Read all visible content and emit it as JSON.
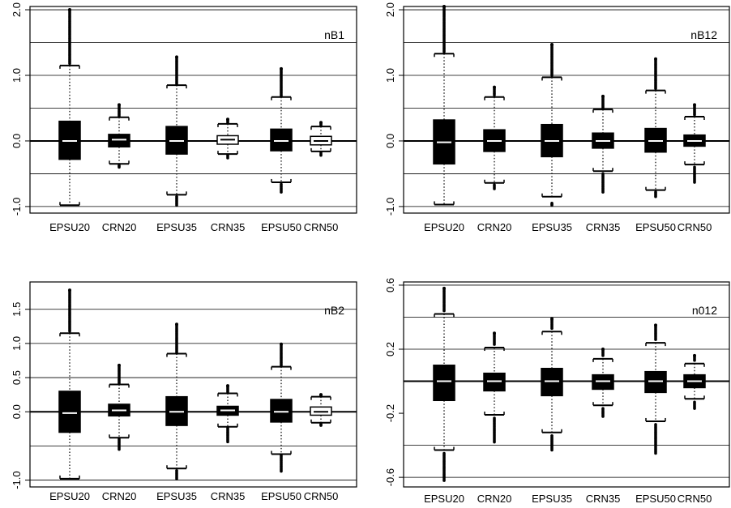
{
  "chart_data": [
    {
      "type": "box",
      "title": "nB1",
      "categories": [
        "EPSU20",
        "CRN20",
        "EPSU35",
        "CRN35",
        "EPSU50",
        "CRN50"
      ],
      "yticks": [
        2.0,
        1.0,
        0.0,
        -1.0
      ],
      "ytick_labels": [
        "2.0",
        "1.0",
        "0.0",
        "-1.0"
      ],
      "ylim": [
        -1.1,
        2.05
      ],
      "grid_y": [
        2.0,
        1.5,
        1.0,
        0.5,
        0.0,
        -0.5,
        -1.0
      ],
      "fills": [
        "#000000",
        "#000000",
        "#000000",
        "#ffffff",
        "#000000",
        "#ffffff"
      ],
      "boxes": [
        {
          "q1": -0.28,
          "median": 0.0,
          "q3": 0.3,
          "whislo": -0.98,
          "whishi": 1.15,
          "outlier_range": [
            1.18,
            2.0
          ]
        },
        {
          "q1": -0.09,
          "median": 0.02,
          "q3": 0.1,
          "whislo": -0.35,
          "whishi": 0.36,
          "outlier_range": [
            0.38,
            0.55
          ]
        },
        {
          "q1": -0.2,
          "median": 0.0,
          "q3": 0.22,
          "whislo": -0.82,
          "whishi": 0.85,
          "outlier_range": [
            0.87,
            1.28
          ]
        },
        {
          "q1": -0.05,
          "median": 0.02,
          "q3": 0.08,
          "whislo": -0.2,
          "whishi": 0.26,
          "outlier_range": [
            0.28,
            0.33
          ]
        },
        {
          "q1": -0.15,
          "median": 0.0,
          "q3": 0.18,
          "whislo": -0.63,
          "whishi": 0.67,
          "outlier_range": [
            0.69,
            1.1
          ]
        },
        {
          "q1": -0.06,
          "median": 0.0,
          "q3": 0.07,
          "whislo": -0.16,
          "whishi": 0.22,
          "outlier_range": [
            0.24,
            0.28
          ]
        }
      ],
      "lower_outlier_range": [
        null,
        [
          -0.37,
          -0.4
        ],
        [
          -0.85,
          -0.98
        ],
        [
          -0.22,
          -0.26
        ],
        [
          -0.66,
          -0.78
        ],
        [
          -0.18,
          -0.22
        ]
      ]
    },
    {
      "type": "box",
      "title": "nB12",
      "categories": [
        "EPSU20",
        "CRN20",
        "EPSU35",
        "CRN35",
        "EPSU50",
        "CRN50"
      ],
      "yticks": [
        2.0,
        1.0,
        0.0,
        -1.0
      ],
      "ytick_labels": [
        "2.0",
        "1.0",
        "0.0",
        "-1.0"
      ],
      "ylim": [
        -1.1,
        2.05
      ],
      "grid_y": [
        2.0,
        1.5,
        1.0,
        0.5,
        0.0,
        -0.5,
        -1.0
      ],
      "fills": [
        "#000000",
        "#000000",
        "#000000",
        "#000000",
        "#000000",
        "#000000"
      ],
      "boxes": [
        {
          "q1": -0.35,
          "median": -0.02,
          "q3": 0.32,
          "whislo": -0.97,
          "whishi": 1.33,
          "outlier_range": [
            1.36,
            2.05
          ]
        },
        {
          "q1": -0.16,
          "median": 0.0,
          "q3": 0.17,
          "whislo": -0.64,
          "whishi": 0.67,
          "outlier_range": [
            0.7,
            0.82
          ]
        },
        {
          "q1": -0.24,
          "median": 0.0,
          "q3": 0.25,
          "whislo": -0.85,
          "whishi": 0.97,
          "outlier_range": [
            1.0,
            1.47
          ]
        },
        {
          "q1": -0.11,
          "median": 0.0,
          "q3": 0.12,
          "whislo": -0.46,
          "whishi": 0.48,
          "outlier_range": [
            0.5,
            0.68
          ]
        },
        {
          "q1": -0.17,
          "median": 0.0,
          "q3": 0.19,
          "whislo": -0.75,
          "whishi": 0.77,
          "outlier_range": [
            0.8,
            1.25
          ]
        },
        {
          "q1": -0.08,
          "median": 0.0,
          "q3": 0.09,
          "whislo": -0.36,
          "whishi": 0.37,
          "outlier_range": [
            0.4,
            0.55
          ]
        }
      ],
      "lower_outlier_range": [
        null,
        [
          -0.67,
          -0.73
        ],
        [
          -0.95,
          -0.98
        ],
        [
          -0.5,
          -0.78
        ],
        [
          -0.78,
          -0.85
        ],
        [
          -0.4,
          -0.63
        ]
      ]
    },
    {
      "type": "box",
      "title": "nB2",
      "categories": [
        "EPSU20",
        "CRN20",
        "EPSU35",
        "CRN35",
        "EPSU50",
        "CRN50"
      ],
      "yticks": [
        1.5,
        1.0,
        0.5,
        0.0,
        -1.0
      ],
      "ytick_labels": [
        "1.5",
        "1.0",
        "0.5",
        "0.0",
        "-1.0"
      ],
      "ylim": [
        -1.1,
        1.9
      ],
      "grid_y": [
        1.5,
        1.0,
        0.5,
        0.0,
        -0.5,
        -1.0
      ],
      "fills": [
        "#000000",
        "#000000",
        "#000000",
        "#000000",
        "#000000",
        "#ffffff"
      ],
      "boxes": [
        {
          "q1": -0.3,
          "median": -0.02,
          "q3": 0.3,
          "whislo": -0.98,
          "whishi": 1.15,
          "outlier_range": [
            1.18,
            1.78
          ]
        },
        {
          "q1": -0.06,
          "median": 0.02,
          "q3": 0.11,
          "whislo": -0.38,
          "whishi": 0.4,
          "outlier_range": [
            0.42,
            0.68
          ]
        },
        {
          "q1": -0.2,
          "median": 0.0,
          "q3": 0.22,
          "whislo": -0.83,
          "whishi": 0.85,
          "outlier_range": [
            0.87,
            1.28
          ]
        },
        {
          "q1": -0.05,
          "median": 0.02,
          "q3": 0.08,
          "whislo": -0.22,
          "whishi": 0.27,
          "outlier_range": [
            0.29,
            0.38
          ]
        },
        {
          "q1": -0.15,
          "median": 0.0,
          "q3": 0.18,
          "whislo": -0.62,
          "whishi": 0.66,
          "outlier_range": [
            0.68,
            0.99
          ]
        },
        {
          "q1": -0.05,
          "median": 0.0,
          "q3": 0.07,
          "whislo": -0.16,
          "whishi": 0.22,
          "outlier_range": [
            0.24,
            0.25
          ]
        }
      ],
      "lower_outlier_range": [
        null,
        [
          -0.4,
          -0.55
        ],
        [
          -0.86,
          -0.98
        ],
        [
          -0.24,
          -0.44
        ],
        [
          -0.64,
          -0.87
        ],
        [
          -0.18,
          -0.2
        ]
      ]
    },
    {
      "type": "box",
      "title": "n012",
      "categories": [
        "EPSU20",
        "CRN20",
        "EPSU35",
        "CRN35",
        "EPSU50",
        "CRN50"
      ],
      "yticks": [
        0.6,
        0.2,
        -0.2,
        -0.6
      ],
      "ytick_labels": [
        "0.6",
        "0.2",
        "-0.2",
        "-0.6"
      ],
      "ylim": [
        -0.66,
        0.62
      ],
      "grid_y": [
        0.6,
        0.4,
        0.2,
        0.0,
        -0.4,
        -0.6
      ],
      "fills": [
        "#000000",
        "#000000",
        "#000000",
        "#000000",
        "#000000",
        "#000000"
      ],
      "boxes": [
        {
          "q1": -0.12,
          "median": 0.0,
          "q3": 0.1,
          "whislo": -0.43,
          "whishi": 0.42,
          "outlier_range": [
            0.44,
            0.58
          ]
        },
        {
          "q1": -0.06,
          "median": 0.0,
          "q3": 0.05,
          "whislo": -0.21,
          "whishi": 0.21,
          "outlier_range": [
            0.23,
            0.3
          ]
        },
        {
          "q1": -0.09,
          "median": 0.0,
          "q3": 0.08,
          "whislo": -0.32,
          "whishi": 0.31,
          "outlier_range": [
            0.33,
            0.39
          ]
        },
        {
          "q1": -0.05,
          "median": 0.0,
          "q3": 0.04,
          "whislo": -0.15,
          "whishi": 0.14,
          "outlier_range": [
            0.16,
            0.2
          ]
        },
        {
          "q1": -0.07,
          "median": 0.0,
          "q3": 0.06,
          "whislo": -0.25,
          "whishi": 0.24,
          "outlier_range": [
            0.26,
            0.35
          ]
        },
        {
          "q1": -0.04,
          "median": 0.0,
          "q3": 0.04,
          "whislo": -0.11,
          "whishi": 0.11,
          "outlier_range": [
            0.13,
            0.16
          ]
        }
      ],
      "lower_outlier_range": [
        [
          -0.45,
          -0.62
        ],
        [
          -0.23,
          -0.38
        ],
        [
          -0.34,
          -0.43
        ],
        [
          -0.17,
          -0.22
        ],
        [
          -0.27,
          -0.45
        ],
        [
          -0.13,
          -0.17
        ]
      ]
    }
  ]
}
